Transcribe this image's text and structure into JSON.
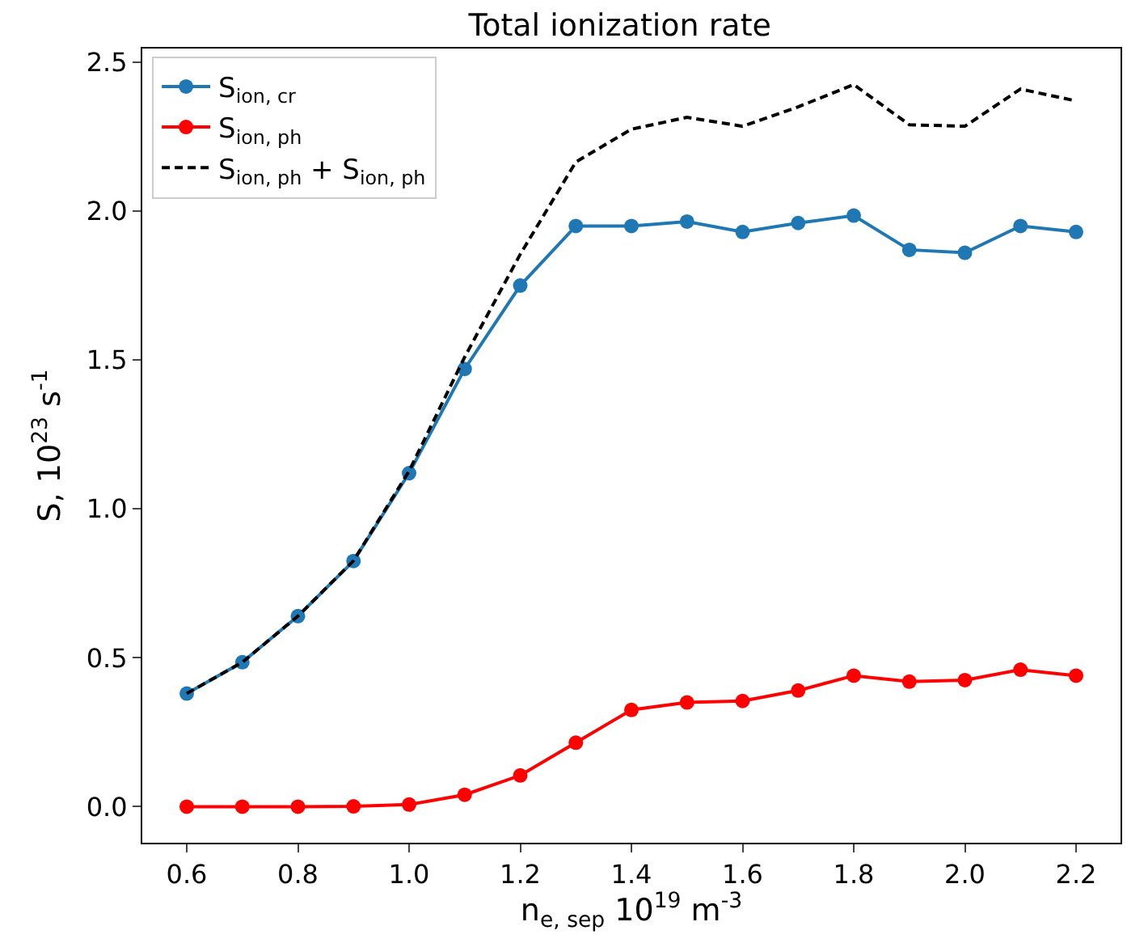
{
  "chart_data": {
    "type": "line",
    "title": "Total ionization rate",
    "xlabel": "n$_{e, sep}$ 10$^{19}$ m$^{-3}$",
    "ylabel": "S, 10$^{23}$ s$^{-1}$",
    "x": [
      0.6,
      0.7,
      0.8,
      0.9,
      1.0,
      1.1,
      1.2,
      1.3,
      1.4,
      1.5,
      1.6,
      1.7,
      1.8,
      1.9,
      2.0,
      2.1,
      2.2
    ],
    "series": [
      {
        "name": "S$_{ion, cr}$",
        "color": "#1f77b4",
        "marker": "circle",
        "line_style": "solid",
        "values": [
          0.38,
          0.485,
          0.64,
          0.825,
          1.12,
          1.47,
          1.75,
          1.95,
          1.95,
          1.965,
          1.93,
          1.96,
          1.985,
          1.87,
          1.86,
          1.95,
          1.93
        ]
      },
      {
        "name": "S$_{ion, ph}$",
        "color": "#ff0000",
        "marker": "circle",
        "line_style": "solid",
        "values": [
          0,
          0,
          0,
          0.001,
          0.007,
          0.04,
          0.105,
          0.215,
          0.325,
          0.35,
          0.355,
          0.39,
          0.44,
          0.42,
          0.425,
          0.46,
          0.44
        ]
      },
      {
        "name": "S$_{ion, ph}$ + S$_{ion, ph}$",
        "color": "#000000",
        "marker": "none",
        "line_style": "dashed",
        "values": [
          0.38,
          0.485,
          0.64,
          0.826,
          1.127,
          1.51,
          1.855,
          2.165,
          2.275,
          2.315,
          2.285,
          2.35,
          2.425,
          2.29,
          2.285,
          2.41,
          2.37
        ]
      }
    ],
    "xlim": [
      0.52,
      2.28
    ],
    "xticks": [
      0.6,
      0.8,
      {
        "value": 1,
        "label": "1.0"
      },
      1.2,
      1.4,
      1.6,
      1.8,
      {
        "value": 2,
        "label": "2.0"
      },
      2.2
    ],
    "ylim": [
      -0.121,
      2.546
    ],
    "yticks": [
      {
        "value": 0,
        "label": "0.0"
      },
      0.5,
      {
        "value": 1,
        "label": "1.0"
      },
      1.5,
      {
        "value": 2,
        "label": "2.0"
      },
      2.5
    ],
    "grid": false,
    "legend": "top left"
  }
}
